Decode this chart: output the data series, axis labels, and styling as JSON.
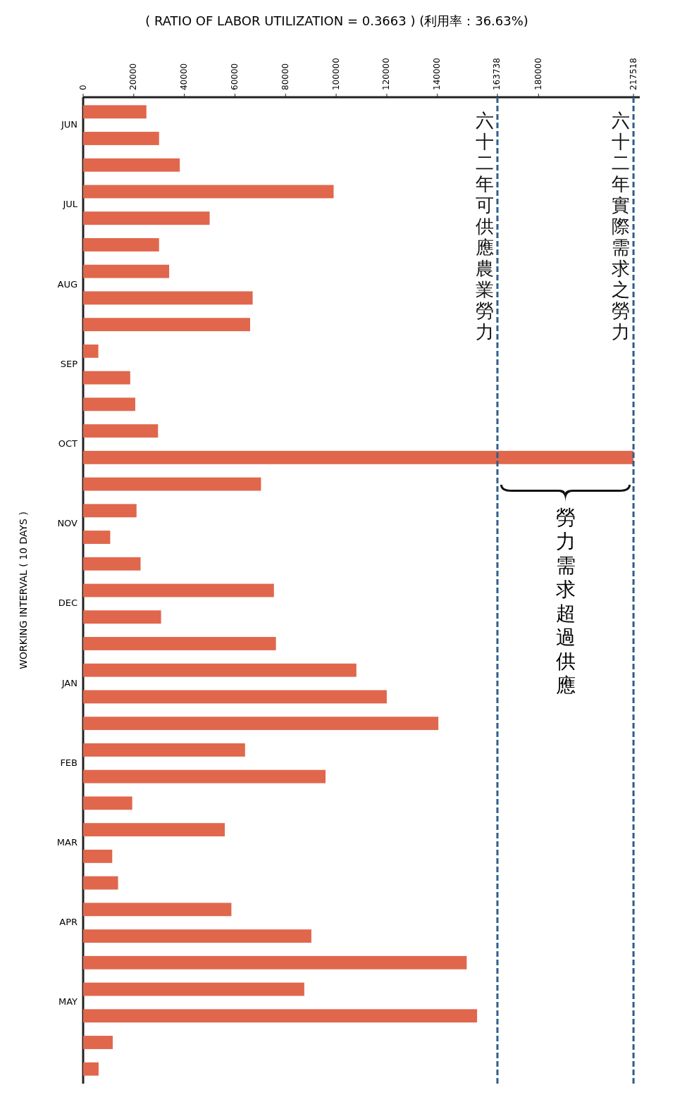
{
  "chart_data": {
    "type": "bar",
    "orientation": "horizontal",
    "title": "( RATIO OF LABOR UTILIZATION = 0.3663 ) (利用率：36.63%)",
    "ylabel": "WORKING INTERVAL ( 10 DAYS )",
    "categories": [
      "JUN",
      null,
      null,
      "JUL",
      null,
      null,
      "AUG",
      null,
      null,
      "SEP",
      null,
      null,
      "OCT",
      null,
      null,
      "NOV",
      null,
      null,
      "DEC",
      null,
      null,
      "JAN",
      null,
      null,
      "FEB",
      null,
      null,
      "MAR",
      null,
      null,
      "APR",
      null,
      null,
      "MAY",
      null,
      null,
      null
    ],
    "values": [
      25000,
      30000,
      38200,
      99000,
      50000,
      30000,
      34000,
      67000,
      66000,
      6000,
      18600,
      20600,
      29600,
      217518,
      70300,
      21100,
      10700,
      22700,
      75400,
      30800,
      76200,
      108000,
      120000,
      140400,
      64000,
      95800,
      19400,
      56000,
      11500,
      13800,
      58600,
      90200,
      151600,
      87400,
      155700,
      11700,
      6100
    ],
    "color": "#e0674c",
    "xlim": [
      0,
      220000
    ],
    "xticks": [
      0,
      20000,
      40000,
      60000,
      80000,
      100000,
      120000,
      140000,
      163738,
      180000,
      217518
    ],
    "ref_lines": [
      {
        "axis": "x",
        "value": 163738,
        "label": "六十二年可供應農業勞力",
        "color": "#2f5d8a",
        "line_style": "dashed"
      },
      {
        "axis": "x",
        "value": 217518,
        "label": "六十二年實際需求之勞力",
        "color": "#2f5d8a",
        "line_style": "dashed"
      }
    ],
    "annotations": [
      "勞力需求超過供應"
    ],
    "grid": false
  }
}
